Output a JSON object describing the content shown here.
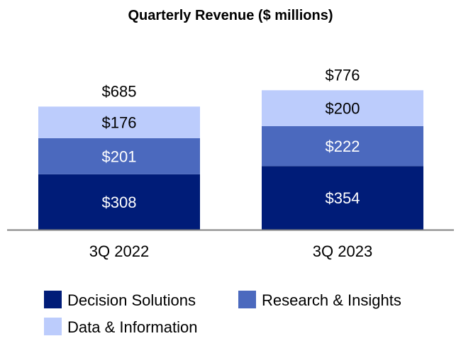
{
  "chart_data": {
    "type": "bar",
    "stacked": true,
    "title": "Quarterly Revenue ($ millions)",
    "xlabel": "",
    "ylabel": "",
    "categories": [
      "3Q 2022",
      "3Q 2023"
    ],
    "totals": [
      685,
      776
    ],
    "total_labels": [
      "$685",
      "$776"
    ],
    "series": [
      {
        "name": "Decision Solutions",
        "values": [
          308,
          354
        ],
        "labels": [
          "$308",
          "$354"
        ],
        "color": "#001C78",
        "label_color": "#FFFFFF"
      },
      {
        "name": "Research & Insights",
        "values": [
          201,
          222
        ],
        "labels": [
          "$201",
          "$222"
        ],
        "color": "#4B69BE",
        "label_color": "#FFFFFF"
      },
      {
        "name": "Data & Information",
        "values": [
          176,
          200
        ],
        "labels": [
          "$176",
          "$200"
        ],
        "color": "#BCCCFC",
        "label_color": "#000000"
      }
    ],
    "ylim": [
      0,
      1000
    ],
    "grid": false,
    "legend_position": "bottom",
    "axis_color": "#808080"
  }
}
